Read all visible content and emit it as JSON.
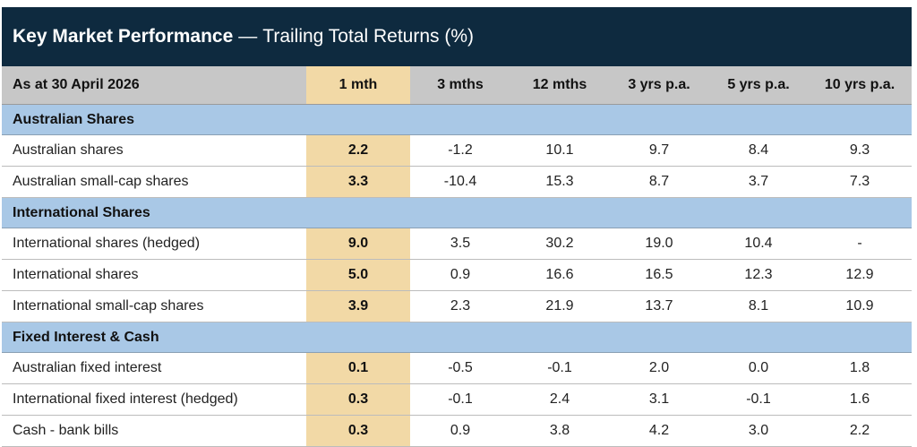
{
  "title": {
    "bold": "Key Market Performance",
    "dash": "—",
    "rest": "Trailing Total Returns (%)"
  },
  "header": {
    "date_label": "As at 30 April 2026",
    "columns": [
      "1 mth",
      "3 mths",
      "12 mths",
      "3 yrs p.a.",
      "5 yrs p.a.",
      "10 yrs p.a."
    ]
  },
  "highlight_color": "#f2d9a6",
  "section_color": "#a9c8e6",
  "sections": [
    {
      "name": "Australian Shares",
      "rows": [
        {
          "name": "Australian shares",
          "values": [
            "2.2",
            "-1.2",
            "10.1",
            "9.7",
            "8.4",
            "9.3"
          ]
        },
        {
          "name": "Australian small-cap shares",
          "values": [
            "3.3",
            "-10.4",
            "15.3",
            "8.7",
            "3.7",
            "7.3"
          ]
        }
      ]
    },
    {
      "name": "International Shares",
      "rows": [
        {
          "name": "International shares (hedged)",
          "values": [
            "9.0",
            "3.5",
            "30.2",
            "19.0",
            "10.4",
            "-"
          ]
        },
        {
          "name": "International shares",
          "values": [
            "5.0",
            "0.9",
            "16.6",
            "16.5",
            "12.3",
            "12.9"
          ]
        },
        {
          "name": "International small-cap shares",
          "values": [
            "3.9",
            "2.3",
            "21.9",
            "13.7",
            "8.1",
            "10.9"
          ]
        }
      ]
    },
    {
      "name": "Fixed Interest & Cash",
      "rows": [
        {
          "name": "Australian fixed interest",
          "values": [
            "0.1",
            "-0.5",
            "-0.1",
            "2.0",
            "0.0",
            "1.8"
          ]
        },
        {
          "name": "International fixed interest (hedged)",
          "values": [
            "0.3",
            "-0.1",
            "2.4",
            "3.1",
            "-0.1",
            "1.6"
          ]
        },
        {
          "name": "Cash - bank bills",
          "values": [
            "0.3",
            "0.9",
            "3.8",
            "4.2",
            "3.0",
            "2.2"
          ]
        }
      ]
    }
  ]
}
